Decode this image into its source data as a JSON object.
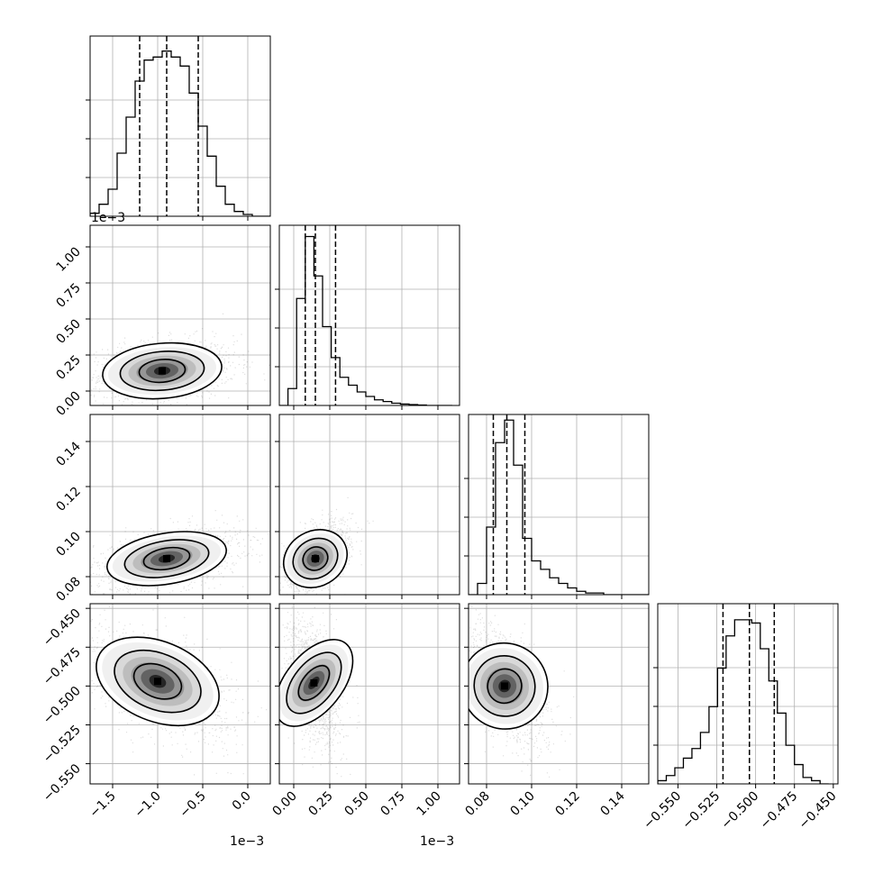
{
  "chart_data": {
    "type": "corner",
    "grid": true,
    "quantiles": [
      0.16,
      0.5,
      0.84
    ],
    "params": [
      {
        "index": 0,
        "range": [
          -1.75,
          0.25
        ],
        "ticks": [
          -1.5,
          -1.0,
          -0.5,
          0.0
        ],
        "tick_labels": [
          "−1.5",
          "−1.0",
          "−0.5",
          "0.0"
        ],
        "offset_label": "1e−3",
        "quantile_values": [
          -1.2,
          -0.9,
          -0.55
        ],
        "hist": {
          "bins": [
            -1.75,
            -1.65,
            -1.55,
            -1.45,
            -1.35,
            -1.25,
            -1.15,
            -1.05,
            -0.95,
            -0.85,
            -0.75,
            -0.65,
            -0.55,
            -0.45,
            -0.35,
            -0.25,
            -0.15,
            -0.05,
            0.05,
            0.15,
            0.25
          ],
          "counts": [
            0.5,
            2,
            4.5,
            10.5,
            16.5,
            22.5,
            26,
            26.5,
            27.5,
            26.5,
            25,
            20.5,
            15,
            10,
            5,
            2,
            0.8,
            0.3,
            0,
            0
          ]
        },
        "hist_ylim": [
          0,
          30
        ]
      },
      {
        "index": 1,
        "range": [
          -0.1,
          1.15
        ],
        "ticks": [
          0.0,
          0.25,
          0.5,
          0.75,
          1.0
        ],
        "tick_labels": [
          "0.00",
          "0.25",
          "0.50",
          "0.75",
          "1.00"
        ],
        "offset_label": "1e−3",
        "quantile_values": [
          0.08,
          0.15,
          0.29
        ],
        "hist": {
          "bins": [
            -0.1,
            -0.04,
            0.02,
            0.08,
            0.14,
            0.2,
            0.26,
            0.32,
            0.38,
            0.44,
            0.5,
            0.56,
            0.62,
            0.68,
            0.74,
            0.8,
            0.86,
            0.92,
            0.98,
            1.04,
            1.1
          ],
          "counts": [
            0,
            3,
            19,
            30,
            23,
            14,
            8.5,
            5,
            3.6,
            2.4,
            1.6,
            1,
            0.7,
            0.4,
            0.25,
            0.15,
            0.08,
            0,
            0,
            0
          ]
        },
        "hist_ylim": [
          0,
          32
        ]
      },
      {
        "index": 2,
        "range": [
          0.072,
          0.152
        ],
        "ticks": [
          0.08,
          0.1,
          0.12,
          0.14
        ],
        "tick_labels": [
          "0.08",
          "0.10",
          "0.12",
          "0.14"
        ],
        "offset_label": "",
        "quantile_values": [
          0.083,
          0.089,
          0.097
        ],
        "hist": {
          "bins": [
            0.072,
            0.076,
            0.08,
            0.084,
            0.088,
            0.092,
            0.096,
            0.1,
            0.104,
            0.108,
            0.112,
            0.116,
            0.12,
            0.124,
            0.128,
            0.132,
            0.136,
            0.14,
            0.144,
            0.148,
            0.152
          ],
          "counts": [
            0,
            2,
            12,
            27,
            31,
            23,
            10,
            6,
            4.5,
            3,
            2,
            1.2,
            0.6,
            0.3,
            0.3,
            0,
            0,
            0,
            0,
            0
          ]
        },
        "hist_ylim": [
          0,
          32
        ]
      },
      {
        "index": 3,
        "range": [
          -0.563,
          -0.447
        ],
        "ticks": [
          -0.55,
          -0.525,
          -0.5,
          -0.475,
          -0.45
        ],
        "tick_labels": [
          "−0.550",
          "−0.525",
          "−0.500",
          "−0.475",
          "−0.450"
        ],
        "offset_label": "",
        "quantile_values": [
          -0.521,
          -0.504,
          -0.488
        ],
        "hist": {
          "bins": [
            -0.563,
            -0.5575,
            -0.552,
            -0.5465,
            -0.541,
            -0.5355,
            -0.53,
            -0.5245,
            -0.519,
            -0.5135,
            -0.508,
            -0.5025,
            -0.497,
            -0.4915,
            -0.486,
            -0.4805,
            -0.475,
            -0.4695,
            -0.464,
            -0.4585,
            -0.453
          ],
          "counts": [
            0.5,
            1.3,
            2.5,
            4,
            5.5,
            8,
            12,
            18,
            23,
            25.5,
            25.5,
            25,
            21,
            16,
            11,
            6,
            3,
            1,
            0.5,
            0
          ]
        },
        "hist_ylim": [
          0,
          28
        ]
      }
    ],
    "pairs": [
      {
        "x": 0,
        "y": 1,
        "center": [
          -0.95,
          0.14
        ],
        "spread": [
          0.3,
          0.08
        ],
        "tilt": 0.2,
        "skew_right": 0.25
      },
      {
        "x": 0,
        "y": 2,
        "center": [
          -0.9,
          0.088
        ],
        "spread": [
          0.3,
          0.005
        ],
        "tilt": 0.4
      },
      {
        "x": 1,
        "y": 2,
        "center": [
          0.15,
          0.088
        ],
        "spread": [
          0.09,
          0.006
        ],
        "tilt": 0.55
      },
      {
        "x": 0,
        "y": 3,
        "center": [
          -1.0,
          -0.497
        ],
        "spread": [
          0.3,
          0.013
        ],
        "tilt": -0.55
      },
      {
        "x": 1,
        "y": 3,
        "center": [
          0.14,
          -0.498
        ],
        "spread": [
          0.07,
          0.015
        ],
        "tilt": -0.35
      },
      {
        "x": 2,
        "y": 3,
        "center": [
          0.088,
          -0.5
        ],
        "spread": [
          0.007,
          0.014
        ],
        "tilt": -0.55
      }
    ]
  }
}
